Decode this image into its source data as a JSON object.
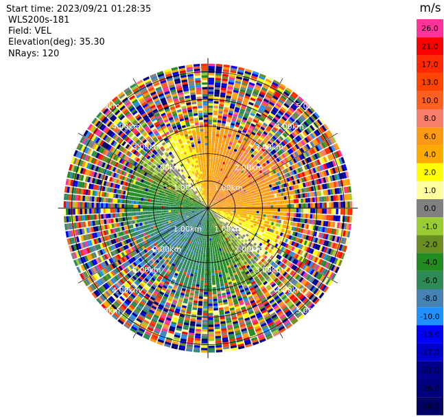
{
  "header": {
    "start_time": "Start time: 2023/09/21 01:28:35",
    "instrument": "WLS200s-181",
    "field": "Field: VEL",
    "elevation": "Elevation(deg): 35.30",
    "nrays": "NRays: 120"
  },
  "colorbar": {
    "unit_label": "m/s",
    "levels": [
      {
        "label": "26.0",
        "color": "#ff3399"
      },
      {
        "label": "21.0",
        "color": "#ff0000"
      },
      {
        "label": "17.0",
        "color": "#ff2a00"
      },
      {
        "label": "13.0",
        "color": "#ff4400"
      },
      {
        "label": "10.0",
        "color": "#ff5f1f"
      },
      {
        "label": "8.0",
        "color": "#f87e6a"
      },
      {
        "label": "6.0",
        "color": "#ff9a14"
      },
      {
        "label": "4.0",
        "color": "#ffaa00"
      },
      {
        "label": "2.0",
        "color": "#ffff00"
      },
      {
        "label": "1.0",
        "color": "#ffffa0"
      },
      {
        "label": "0.0",
        "color": "#808080"
      },
      {
        "label": "-1.0",
        "color": "#9acd32"
      },
      {
        "label": "-2.0",
        "color": "#6b8e23"
      },
      {
        "label": "-4.0",
        "color": "#228b22"
      },
      {
        "label": "-6.0",
        "color": "#2e8b57"
      },
      {
        "label": "-8.0",
        "color": "#4682b4"
      },
      {
        "label": "-10.0",
        "color": "#1e90ff"
      },
      {
        "label": "-13.0",
        "color": "#0000ff"
      },
      {
        "label": "-17.0",
        "color": "#0000cd"
      },
      {
        "label": "-21.0",
        "color": "#00008b"
      },
      {
        "label": "-26.0",
        "color": "#000080"
      },
      {
        "label": "-30.0",
        "color": "#000066"
      }
    ]
  },
  "chart_data": {
    "type": "heatmap",
    "projection": "polar PPI",
    "nrays": 120,
    "range_rings": [
      "1.00km",
      "2.00km",
      "3.00km",
      "4.00km",
      "5.00km"
    ],
    "range_ring_km": [
      1,
      2,
      3,
      4,
      5
    ],
    "rays_in_view_max_km": 5.3,
    "pattern": {
      "inner_sector_north_to_east": "orange/salmon positive velocity (4 to 10 m/s)",
      "east_sector": "yellow (1 to 4 m/s)",
      "south_sector": "blue/green negative velocity (-4 to -10 m/s)",
      "west_sector": "green/olive (-1 to -6 m/s)",
      "zero_line": "grey bands along north-west and south-east",
      "outer_ranges": "noisy multicolor speckle beyond about 3 km"
    }
  }
}
